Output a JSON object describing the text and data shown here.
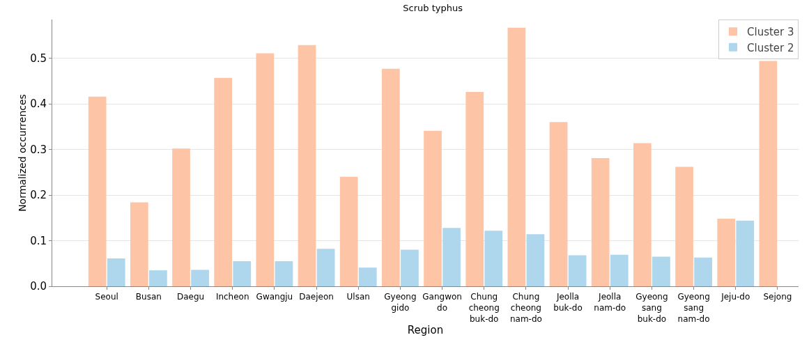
{
  "chart_data": {
    "type": "bar",
    "title": "Scrub typhus",
    "xlabel": "Region",
    "ylabel": "Normalized occurrences",
    "categories": [
      "Seoul",
      "Busan",
      "Daegu",
      "Incheon",
      "Gwangju",
      "Daejeon",
      "Ulsan",
      "Gyeong\ngido",
      "Gangwon\ndo",
      "Chung\ncheong\nbuk-do",
      "Chung\ncheong\nnam-do",
      "Jeolla\nbuk-do",
      "Jeolla\nnam-do",
      "Gyeong\nsang\nbuk-do",
      "Gyeong\nsang\nnam-do",
      "Jeju-do",
      "Sejong"
    ],
    "series": [
      {
        "name": "Cluster 3",
        "color": "#fdc5a5",
        "values": [
          0.416,
          0.184,
          0.302,
          0.457,
          0.511,
          0.529,
          0.24,
          0.477,
          0.341,
          0.426,
          0.567,
          0.36,
          0.281,
          0.314,
          0.262,
          0.148,
          0.494
        ]
      },
      {
        "name": "Cluster 2",
        "color": "#aed6ec",
        "values": [
          0.061,
          0.035,
          0.036,
          0.055,
          0.055,
          0.082,
          0.041,
          0.08,
          0.128,
          0.122,
          0.114,
          0.068,
          0.069,
          0.065,
          0.063,
          0.144,
          0
        ]
      }
    ],
    "ylim": [
      0,
      0.585
    ],
    "yticks": [
      {
        "value": 0,
        "label": "0.0"
      },
      0.1,
      0.2,
      0.3,
      0.4,
      0.5
    ],
    "grid": "y",
    "legend": "top right"
  }
}
